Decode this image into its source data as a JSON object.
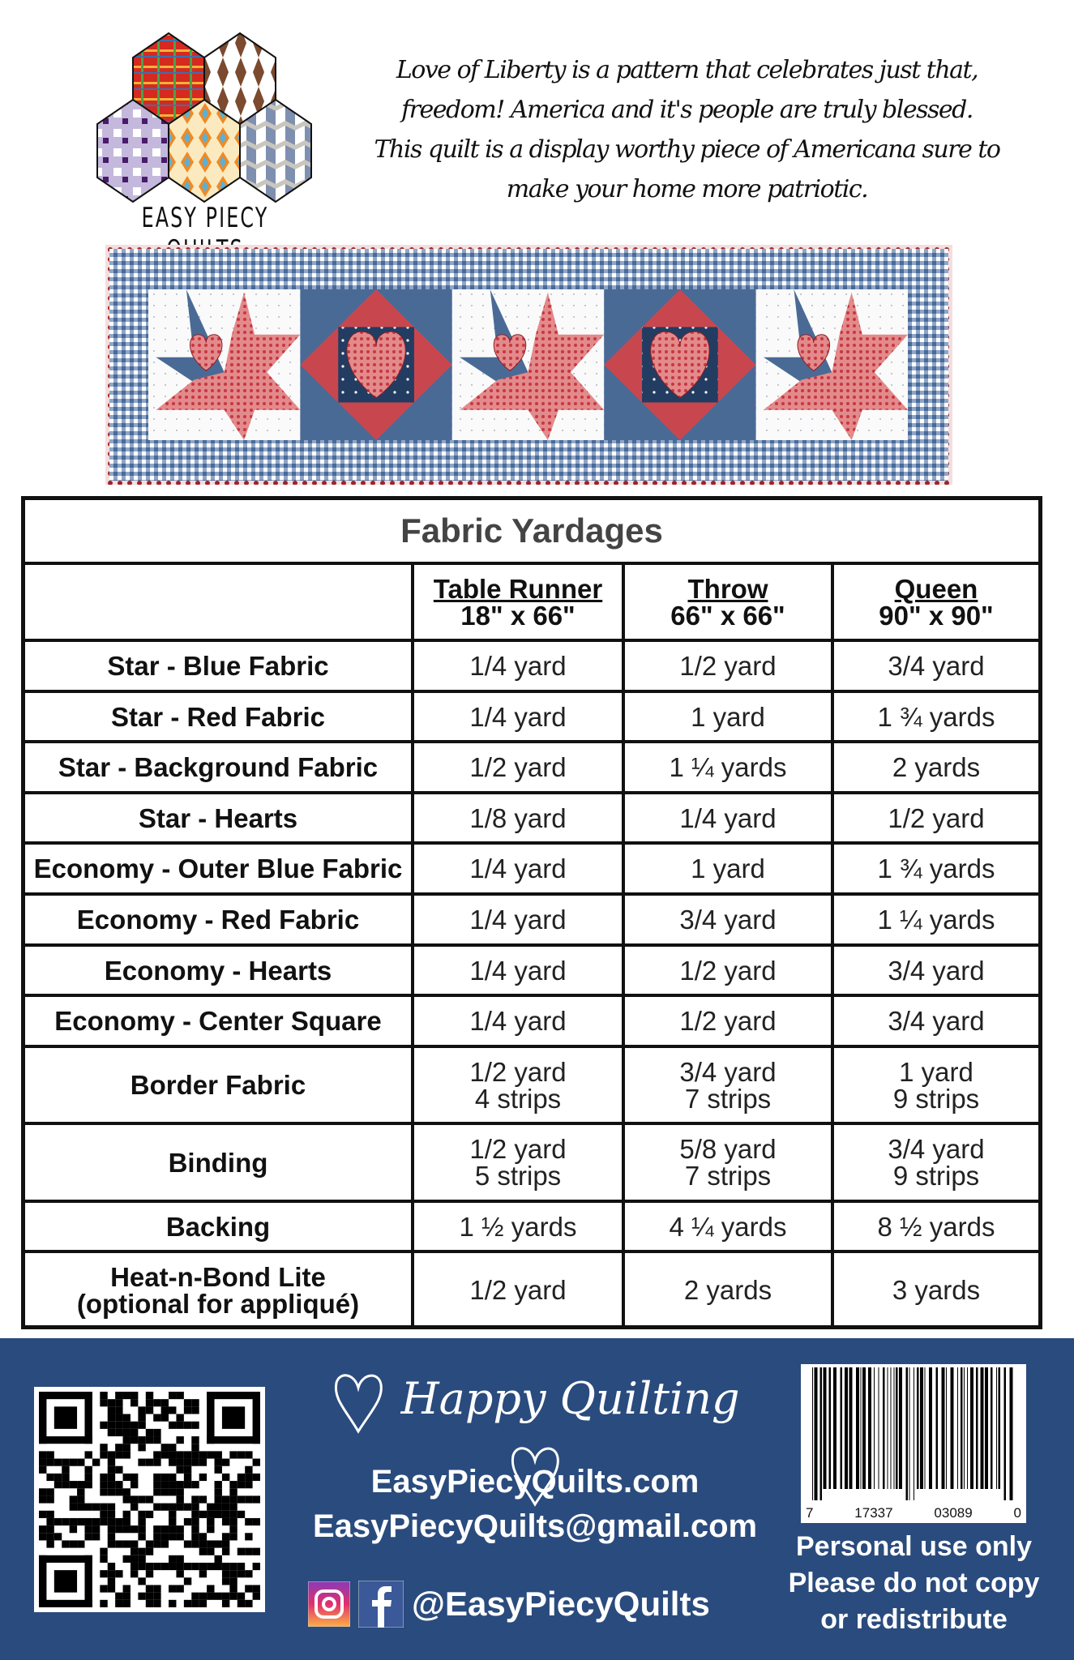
{
  "logo": {
    "text": "EASY PIECY QUILTS"
  },
  "intro": {
    "lines": [
      "Love of Liberty is a pattern that celebrates just that,",
      "freedom!  America and it's people are truly blessed.",
      "This quilt is a display worthy piece of Americana sure to",
      "make your home more patriotic."
    ]
  },
  "colors": {
    "footer": "#2a4b7d",
    "quilt_blue": "#4a6a96",
    "quilt_red": "#c8474e",
    "title_gray": "#444444"
  },
  "table": {
    "title": "Fabric Yardages",
    "columns": [
      {
        "name": "Table Runner",
        "size": "18\" x 66\""
      },
      {
        "name": "Throw",
        "size": "66\" x 66\""
      },
      {
        "name": "Queen",
        "size": "90\" x 90\""
      }
    ],
    "rows": [
      {
        "label": [
          "Star - Blue Fabric"
        ],
        "values": [
          [
            "1/4 yard"
          ],
          [
            "1/2 yard"
          ],
          [
            "3/4 yard"
          ]
        ]
      },
      {
        "label": [
          "Star - Red Fabric"
        ],
        "values": [
          [
            "1/4 yard"
          ],
          [
            "1 yard"
          ],
          [
            "1 ¾ yards"
          ]
        ]
      },
      {
        "label": [
          "Star - Background Fabric"
        ],
        "values": [
          [
            "1/2 yard"
          ],
          [
            "1 ¼ yards"
          ],
          [
            "2 yards"
          ]
        ]
      },
      {
        "label": [
          "Star - Hearts"
        ],
        "values": [
          [
            "1/8 yard"
          ],
          [
            "1/4 yard"
          ],
          [
            "1/2 yard"
          ]
        ]
      },
      {
        "label": [
          "Economy - Outer Blue Fabric"
        ],
        "values": [
          [
            "1/4 yard"
          ],
          [
            "1 yard"
          ],
          [
            "1 ¾ yards"
          ]
        ]
      },
      {
        "label": [
          "Economy - Red Fabric"
        ],
        "values": [
          [
            "1/4 yard"
          ],
          [
            "3/4 yard"
          ],
          [
            "1 ¼ yards"
          ]
        ]
      },
      {
        "label": [
          "Economy - Hearts"
        ],
        "values": [
          [
            "1/4 yard"
          ],
          [
            "1/2 yard"
          ],
          [
            "3/4 yard"
          ]
        ]
      },
      {
        "label": [
          "Economy - Center Square"
        ],
        "values": [
          [
            "1/4 yard"
          ],
          [
            "1/2 yard"
          ],
          [
            "3/4 yard"
          ]
        ]
      },
      {
        "label": [
          "Border Fabric"
        ],
        "values": [
          [
            "1/2 yard",
            "4 strips"
          ],
          [
            "3/4 yard",
            "7 strips"
          ],
          [
            "1 yard",
            "9 strips"
          ]
        ]
      },
      {
        "label": [
          "Binding"
        ],
        "values": [
          [
            "1/2 yard",
            "5 strips"
          ],
          [
            "5/8 yard",
            "7 strips"
          ],
          [
            "3/4 yard",
            "9 strips"
          ]
        ]
      },
      {
        "label": [
          "Backing"
        ],
        "values": [
          [
            "1 ½ yards"
          ],
          [
            "4 ¼ yards"
          ],
          [
            "8 ½ yards"
          ]
        ]
      },
      {
        "label": [
          "Heat-n-Bond Lite",
          "(optional for appliqué)"
        ],
        "values": [
          [
            "1/2 yard"
          ],
          [
            "2 yards"
          ],
          [
            "3 yards"
          ]
        ]
      }
    ]
  },
  "footer": {
    "happy": "Happy Quilting",
    "website": "EasyPiecyQuilts.com",
    "email": "EasyPiecyQuilts@gmail.com",
    "social_handle": "@EasyPiecyQuilts",
    "social_icons": [
      "instagram-icon",
      "facebook-icon"
    ],
    "barcode_digits": [
      "7",
      "17337",
      "03089",
      "0"
    ],
    "legal": [
      "Personal use only",
      "Please do not copy",
      "or redistribute"
    ]
  }
}
